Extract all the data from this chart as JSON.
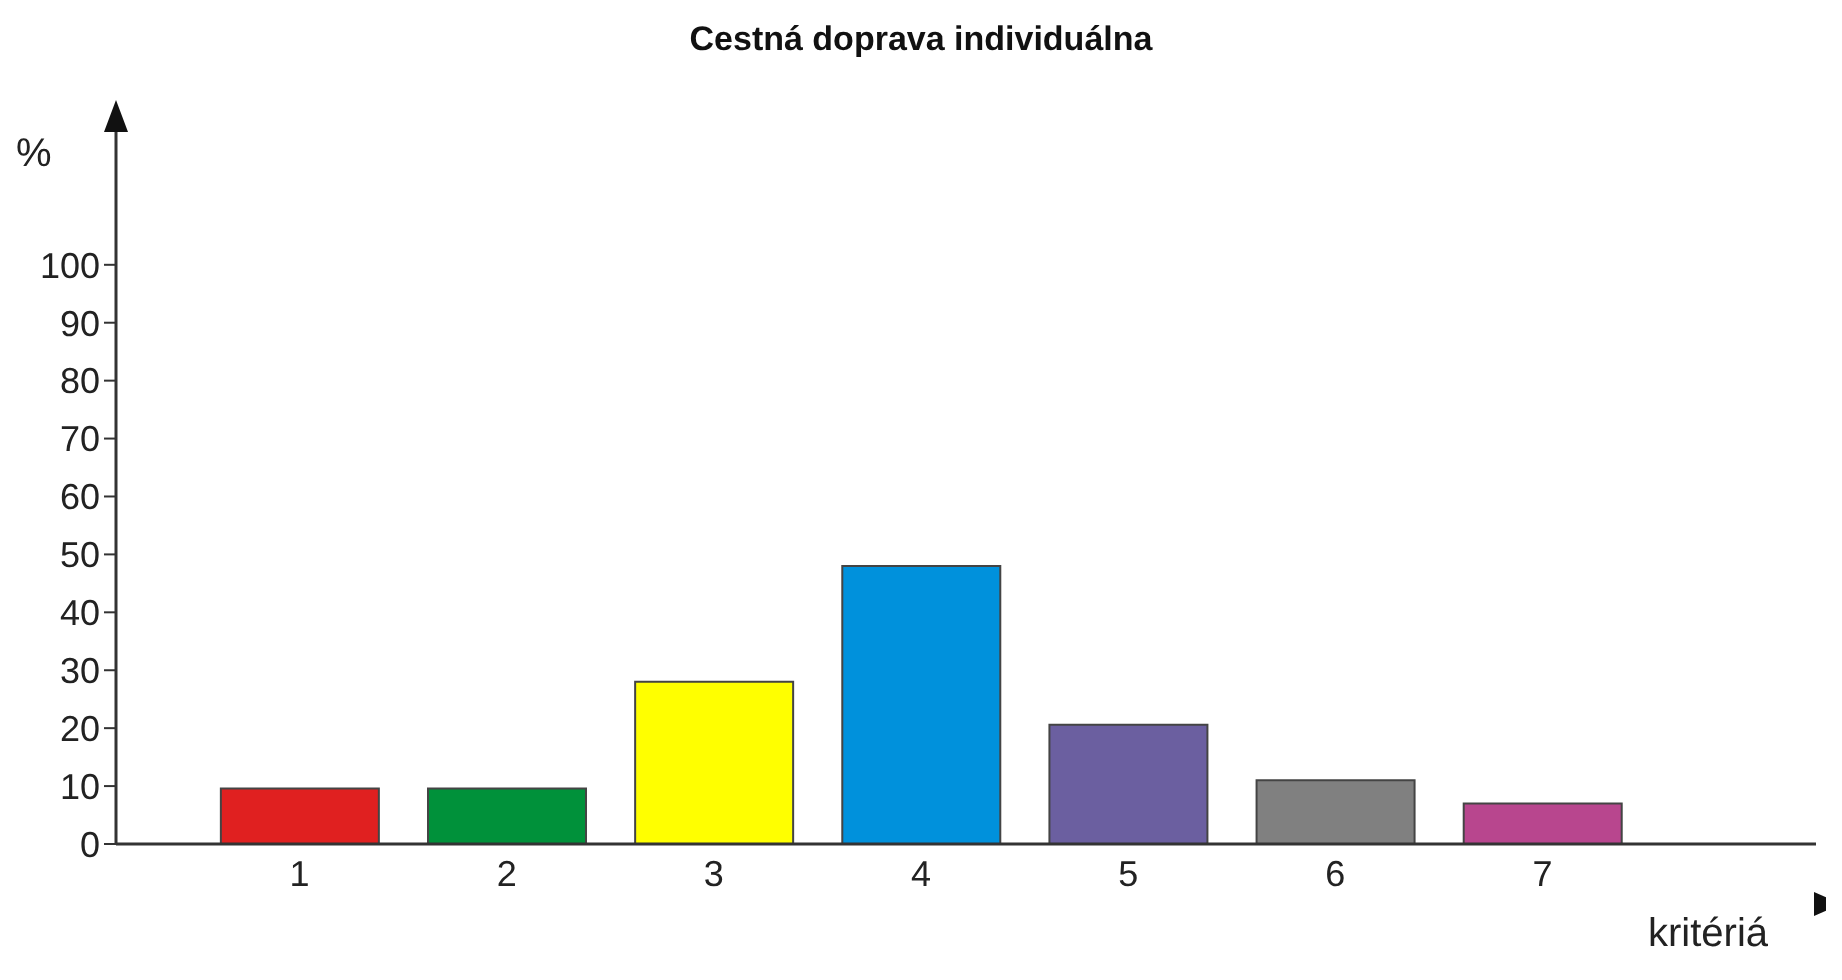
{
  "chart_data": {
    "type": "bar",
    "title": "Cestná doprava individuálna",
    "xlabel": "kritériá",
    "ylabel": "%",
    "categories": [
      "1",
      "2",
      "3",
      "4",
      "5",
      "6",
      "7"
    ],
    "values": [
      9.6,
      9.6,
      28,
      48,
      20.6,
      11,
      7
    ],
    "colors": [
      "#e02020",
      "#00913a",
      "#ffff00",
      "#0091dc",
      "#6b5fa0",
      "#808080",
      "#b8468e"
    ],
    "ylim": [
      0,
      125
    ],
    "yticks": [
      0,
      10,
      20,
      30,
      40,
      50,
      60,
      70,
      80,
      90,
      100
    ],
    "grid": false
  }
}
